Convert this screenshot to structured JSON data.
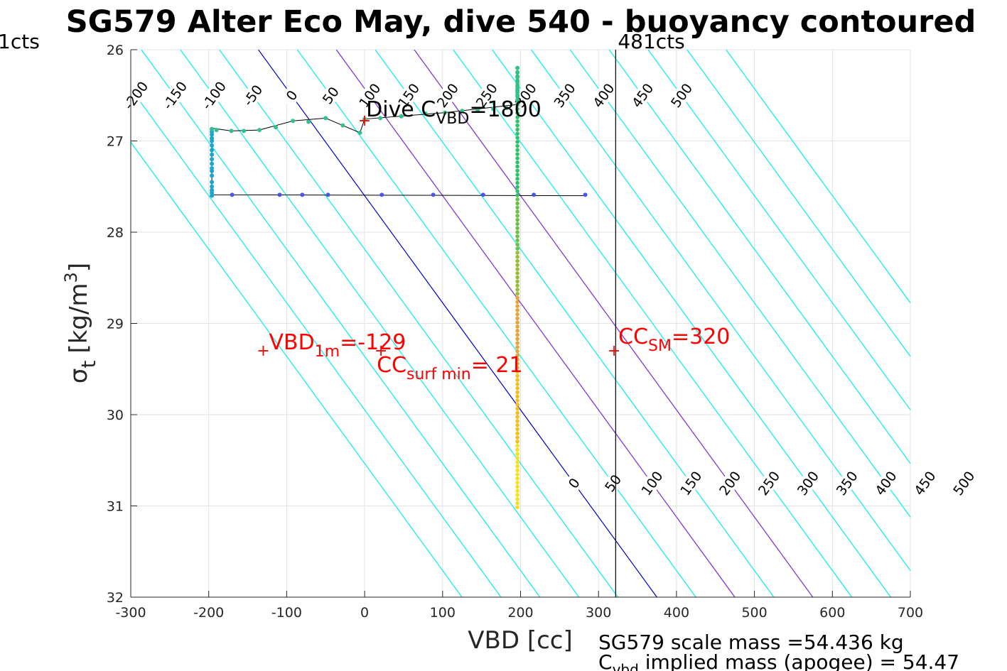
{
  "chart_data": {
    "type": "scatter",
    "title": "SG579 Alter Eco May, dive 540 - buoyancy contoured",
    "xlabel": "VBD [cc]",
    "ylabel": "σ_t [kg/m^3]",
    "ylabel_parts": {
      "sym": "σ",
      "sub": "t",
      "bracket_open": "[kg/m",
      "sup": "3",
      "bracket_close": "]"
    },
    "xlim": [
      -300,
      700
    ],
    "ylim": [
      26,
      32
    ],
    "y_reversed": true,
    "grid": true,
    "xticks": [
      "-300",
      "-200",
      "-100",
      "0",
      "100",
      "200",
      "300",
      "400",
      "500",
      "600",
      "700"
    ],
    "yticks": [
      "26",
      "27",
      "28",
      "29",
      "30",
      "31",
      "32"
    ],
    "contours": {
      "slope_cc_per_density": 85.2,
      "cyan_levels": [
        -250,
        -200,
        -150,
        -100,
        -50,
        50,
        100,
        150,
        200,
        250,
        300,
        350,
        400,
        450,
        500,
        550,
        600
      ],
      "highlight_level": 0,
      "highlight_color": "#0000cd",
      "secondary_levels": [
        100,
        200
      ],
      "secondary_color": "#9a27d9",
      "cyan_color": "#00f0f0",
      "top_labels": [
        {
          "level": -200,
          "text": "-200"
        },
        {
          "level": -150,
          "text": "-150"
        },
        {
          "level": -100,
          "text": "-100"
        },
        {
          "level": -50,
          "text": "-50"
        },
        {
          "level": 0,
          "text": "0"
        },
        {
          "level": 50,
          "text": "50"
        },
        {
          "level": 100,
          "text": "100"
        },
        {
          "level": 150,
          "text": "150"
        },
        {
          "level": 200,
          "text": "200"
        },
        {
          "level": 250,
          "text": "250"
        },
        {
          "level": 300,
          "text": "300"
        },
        {
          "level": 350,
          "text": "350"
        },
        {
          "level": 400,
          "text": "400"
        },
        {
          "level": 450,
          "text": "450"
        },
        {
          "level": 500,
          "text": "500"
        }
      ],
      "bottom_labels": [
        {
          "level": 0,
          "text": "0"
        },
        {
          "level": 50,
          "text": "50"
        },
        {
          "level": 100,
          "text": "100"
        },
        {
          "level": 150,
          "text": "150"
        },
        {
          "level": 200,
          "text": "200"
        },
        {
          "level": 250,
          "text": "250"
        },
        {
          "level": 300,
          "text": "300"
        },
        {
          "level": 350,
          "text": "350"
        },
        {
          "level": 400,
          "text": "400"
        },
        {
          "level": 450,
          "text": "450"
        },
        {
          "level": 500,
          "text": "500"
        }
      ]
    },
    "series": [
      {
        "points": [
          [
            283,
            27.59
          ],
          [
            217,
            27.59
          ],
          [
            152,
            27.59
          ],
          [
            88,
            27.59
          ],
          [
            22,
            27.59
          ],
          [
            -47,
            27.59
          ],
          [
            -80,
            27.59
          ],
          [
            -109,
            27.59
          ],
          [
            -170,
            27.59
          ]
        ],
        "color": "#4c55e8"
      },
      {
        "points": [
          [
            -196,
            27.6
          ],
          [
            -196,
            27.57
          ],
          [
            -196,
            27.54
          ],
          [
            -196,
            27.5
          ],
          [
            -196,
            27.45
          ],
          [
            -196,
            27.38
          ],
          [
            -196,
            27.33
          ],
          [
            -196,
            27.3
          ],
          [
            -196,
            27.25
          ],
          [
            -196,
            27.2
          ],
          [
            -196,
            27.15
          ],
          [
            -196,
            27.1
          ],
          [
            -196,
            27.05
          ],
          [
            -196,
            27.0
          ],
          [
            -196,
            26.97
          ],
          [
            -196,
            26.93
          ],
          [
            -196,
            26.9
          ],
          [
            -196,
            26.87
          ]
        ],
        "color": "#1aa6d4"
      },
      {
        "points": [
          [
            -196,
            26.87
          ],
          [
            -190,
            26.88
          ],
          [
            -171,
            26.89
          ],
          [
            -155,
            26.89
          ],
          [
            -135,
            26.88
          ],
          [
            -114,
            26.85
          ],
          [
            -92,
            26.78
          ],
          [
            -72,
            26.79
          ],
          [
            -50,
            26.75
          ],
          [
            -28,
            26.83
          ],
          [
            -6,
            26.91
          ],
          [
            0,
            26.76
          ],
          [
            20,
            26.75
          ],
          [
            47,
            26.73
          ],
          [
            78,
            26.7
          ],
          [
            103,
            26.69
          ],
          [
            125,
            26.67
          ],
          [
            145,
            26.67
          ],
          [
            165,
            26.65
          ],
          [
            182,
            26.64
          ],
          [
            196,
            26.6
          ],
          [
            196,
            26.55
          ],
          [
            196,
            26.5
          ],
          [
            196,
            26.45
          ],
          [
            196,
            26.4
          ],
          [
            196,
            26.35
          ],
          [
            196,
            26.3
          ],
          [
            196,
            26.25
          ],
          [
            196,
            26.2
          ]
        ],
        "color": "#33c08a"
      }
    ],
    "line_series": [
      {
        "points": [
          [
            283,
            27.6
          ],
          [
            -196,
            27.59
          ],
          [
            -196,
            26.86
          ],
          [
            -171,
            26.89
          ],
          [
            -135,
            26.88
          ],
          [
            -92,
            26.78
          ],
          [
            -50,
            26.75
          ],
          [
            -28,
            26.83
          ],
          [
            -6,
            26.91
          ],
          [
            0,
            26.76
          ],
          [
            103,
            26.69
          ],
          [
            196,
            26.6
          ]
        ],
        "color": "#000000"
      }
    ],
    "vertical_column": {
      "x": 196,
      "y_from": 26.2,
      "y_to": 31.02,
      "color_stops": [
        {
          "y": 26.2,
          "color": "#2ec26b"
        },
        {
          "y": 27.6,
          "color": "#6cc04a"
        },
        {
          "y": 28.2,
          "color": "#9bbd35"
        },
        {
          "y": 28.7,
          "color": "#e6a53a"
        },
        {
          "y": 29.5,
          "color": "#f0c020"
        },
        {
          "y": 30.3,
          "color": "#f6e020"
        },
        {
          "y": 31.02,
          "color": "#ffff10"
        }
      ]
    },
    "vlines": [
      {
        "x": 322,
        "label": "481cts",
        "color": "#000000"
      },
      {
        "label_left": "1cts"
      }
    ],
    "annotations": [
      {
        "x": -130,
        "y": 29.3,
        "marker": "+",
        "color": "#ff0000",
        "main": "VBD",
        "sub": "1m",
        "tail": "=-129"
      },
      {
        "x": 21,
        "y": 29.3,
        "marker": "+",
        "color": "#ff0000",
        "main": "CC",
        "sub": "surf min",
        "tail": "= 21"
      },
      {
        "x": 320,
        "y": 29.3,
        "marker": "+",
        "color": "#ff0000",
        "main": "CC",
        "sub": "SM",
        "tail": "=320"
      },
      {
        "x": 0,
        "y": 26.78,
        "marker": "+",
        "color": "#ff0000",
        "main": "Dive C",
        "sub": "VBD",
        "tail": "=1800",
        "text_color": "#000000"
      }
    ],
    "footer_lines": [
      "SG579 scale mass =54.436 kg",
      "C",
      "vbd",
      " implied mass (apogee) = 54.47"
    ]
  }
}
